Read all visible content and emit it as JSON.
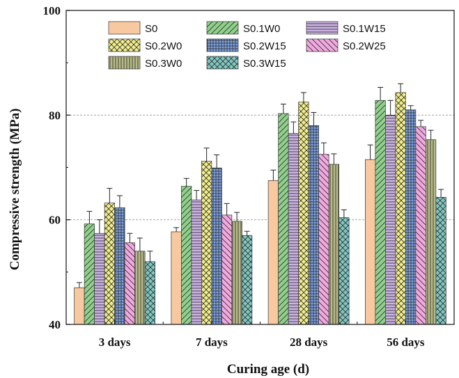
{
  "chart_data": {
    "type": "bar",
    "title": "",
    "xlabel": "Curing age (d)",
    "ylabel": "Compressive strength (MPa)",
    "ylim": [
      40,
      100
    ],
    "yticks": [
      "40",
      "60",
      "80",
      "100"
    ],
    "reference_lines": [
      60,
      80
    ],
    "grid": false,
    "legend_position": "top",
    "categories": [
      "3 days",
      "7 days",
      "28 days",
      "56 days"
    ],
    "series": [
      {
        "name": "S0",
        "color": "#f8c9a0",
        "pattern": "solid",
        "values": [
          47.0,
          57.7,
          67.5,
          71.5
        ],
        "errors": [
          1.0,
          0.8,
          2.0,
          2.8
        ]
      },
      {
        "name": "S0.1W0",
        "color": "#8fd18a",
        "pattern": "diagonal",
        "values": [
          59.2,
          66.4,
          80.3,
          82.8
        ],
        "errors": [
          2.4,
          1.5,
          1.8,
          2.5
        ]
      },
      {
        "name": "S0.1W15",
        "color": "#cdb3e6",
        "pattern": "horizontal",
        "values": [
          57.4,
          63.8,
          76.5,
          80.0
        ],
        "errors": [
          2.6,
          1.8,
          2.2,
          2.8
        ]
      },
      {
        "name": "S0.2W0",
        "color": "#f2ee8a",
        "pattern": "crosshatch",
        "values": [
          63.2,
          71.2,
          82.5,
          84.3
        ],
        "errors": [
          2.8,
          2.5,
          1.8,
          1.7
        ]
      },
      {
        "name": "S0.2W15",
        "color": "#7fa5e8",
        "pattern": "grid",
        "values": [
          62.3,
          69.9,
          78.0,
          81.0
        ],
        "errors": [
          2.3,
          2.5,
          2.5,
          0.8
        ]
      },
      {
        "name": "S0.2W25",
        "color": "#f2a8e0",
        "pattern": "backdiagonal",
        "values": [
          55.6,
          60.9,
          72.5,
          77.8
        ],
        "errors": [
          1.8,
          2.2,
          2.2,
          1.2
        ]
      },
      {
        "name": "S0.3W0",
        "color": "#b7ba86",
        "pattern": "vertical",
        "values": [
          54.0,
          59.7,
          70.6,
          75.3
        ],
        "errors": [
          2.5,
          1.7,
          2.0,
          1.8
        ]
      },
      {
        "name": "S0.3W15",
        "color": "#7fc8c2",
        "pattern": "diagcross",
        "values": [
          52.0,
          57.0,
          60.4,
          64.3
        ],
        "errors": [
          2.0,
          0.8,
          1.5,
          1.5
        ]
      }
    ]
  }
}
